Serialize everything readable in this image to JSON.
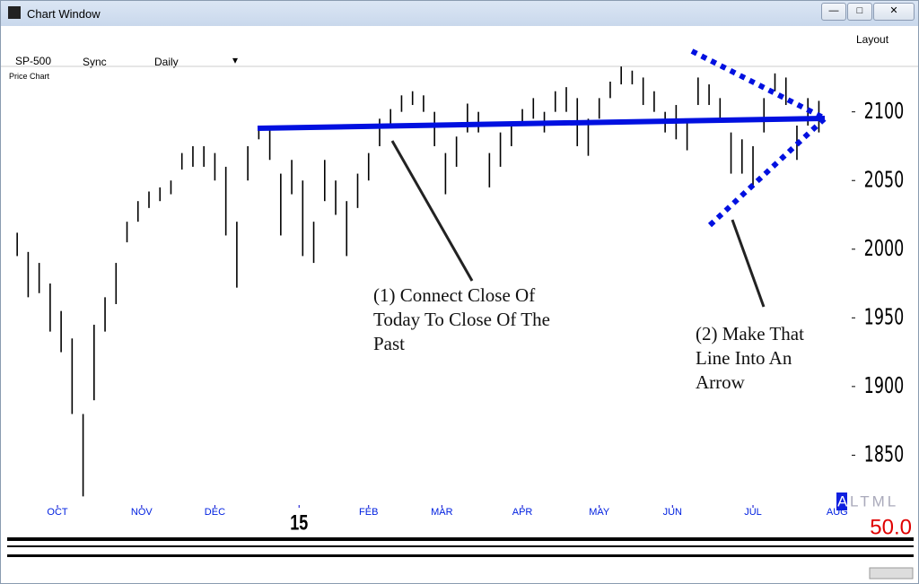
{
  "window": {
    "title": "Chart Window",
    "symbol": "SP-500",
    "sync": "Sync",
    "period": "Daily",
    "layout": "Layout",
    "pane": "Price Chart",
    "indicator": {
      "first": "A",
      "rest": "LTML"
    },
    "reading": "50.0"
  },
  "annotations": [
    {
      "lines": [
        "(1) Connect Close Of",
        "Today To Close Of The",
        "Past"
      ]
    },
    {
      "lines": [
        "(2) Make That",
        "Line Into An",
        "Arrow"
      ]
    }
  ],
  "chart_data": {
    "type": "ohlc",
    "color": "#000000",
    "x": [
      0,
      3,
      6,
      9,
      12,
      15,
      18,
      21,
      24,
      27,
      30,
      33,
      36,
      39,
      42,
      45,
      48,
      51,
      54,
      57,
      60,
      63,
      66,
      69,
      72,
      75,
      78,
      81,
      84,
      87,
      90,
      93,
      96,
      99,
      102,
      105,
      108,
      111,
      114,
      117,
      120,
      123,
      126,
      129,
      132,
      135,
      138,
      141,
      144,
      147,
      150,
      153,
      156,
      159,
      162,
      165,
      168,
      171,
      174,
      177,
      180,
      183,
      186,
      189,
      192,
      195,
      198,
      201,
      204,
      207,
      210,
      213,
      216,
      219
    ],
    "high": [
      2012,
      1998,
      1990,
      1975,
      1955,
      1935,
      1880,
      1945,
      1965,
      1990,
      2020,
      2035,
      2042,
      2045,
      2050,
      2070,
      2075,
      2075,
      2070,
      2060,
      2020,
      2075,
      2090,
      2090,
      2055,
      2065,
      2050,
      2020,
      2065,
      2050,
      2035,
      2055,
      2070,
      2095,
      2102,
      2112,
      2115,
      2112,
      2100,
      2070,
      2082,
      2106,
      2100,
      2070,
      2085,
      2090,
      2102,
      2110,
      2100,
      2115,
      2118,
      2110,
      2095,
      2110,
      2122,
      2133,
      2130,
      2125,
      2115,
      2100,
      2105,
      2095,
      2125,
      2120,
      2110,
      2085,
      2080,
      2075,
      2110,
      2128,
      2125,
      2090,
      2110,
      2108
    ],
    "low": [
      1995,
      1965,
      1968,
      1940,
      1925,
      1880,
      1820,
      1890,
      1940,
      1960,
      2005,
      2020,
      2030,
      2035,
      2040,
      2058,
      2060,
      2060,
      2050,
      2010,
      1972,
      2050,
      2080,
      2065,
      2010,
      2040,
      1995,
      1990,
      2035,
      2025,
      1995,
      2030,
      2050,
      2075,
      2090,
      2100,
      2105,
      2100,
      2075,
      2040,
      2060,
      2085,
      2085,
      2045,
      2060,
      2075,
      2090,
      2095,
      2085,
      2100,
      2100,
      2075,
      2068,
      2095,
      2110,
      2120,
      2120,
      2105,
      2100,
      2085,
      2080,
      2072,
      2105,
      2105,
      2095,
      2055,
      2055,
      2045,
      2085,
      2115,
      2105,
      2065,
      2090,
      2085
    ],
    "xlim": [
      -2,
      226
    ],
    "xticks": [
      {
        "value": 11,
        "label": "OCT"
      },
      {
        "value": 34,
        "label": "NOV"
      },
      {
        "value": 54,
        "label": "DEC"
      },
      {
        "value": 77,
        "label": "15"
      },
      {
        "value": 96,
        "label": "FEB"
      },
      {
        "value": 116,
        "label": "MAR"
      },
      {
        "value": 138,
        "label": "APR"
      },
      {
        "value": 159,
        "label": "MAY"
      },
      {
        "value": 179,
        "label": "JUN"
      },
      {
        "value": 201,
        "label": "JUL"
      },
      {
        "value": 224,
        "label": "AUG"
      }
    ],
    "ylim": [
      1815,
      2122
    ],
    "yticks": [
      1850,
      1900,
      1950,
      2000,
      2050,
      2100
    ]
  }
}
